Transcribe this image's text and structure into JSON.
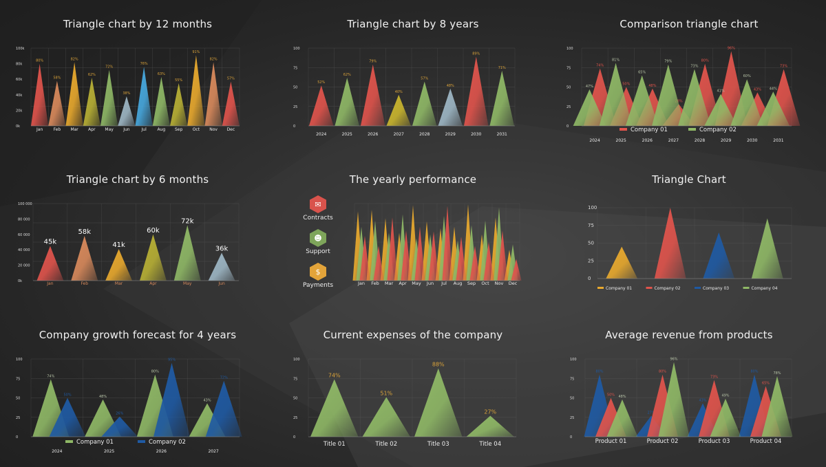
{
  "colors": {
    "red": "#e0544c",
    "orange": "#d98a5c",
    "yellow": "#e8a92e",
    "olive": "#b8b035",
    "green": "#8fb866",
    "grayblue": "#9db6c4",
    "skyblue": "#47a8de",
    "blue": "#1f5aa3",
    "label_orange": "#d9a23a"
  },
  "titles": [
    "Triangle chart by 12 months",
    "Triangle chart by 8 years",
    "Comparison triangle chart",
    "Triangle chart by 6 months",
    "The yearly performance",
    "Triangle Chart",
    "Company growth forecast for 4 years",
    "Current expenses of the company",
    "Average revenue from products"
  ],
  "side_legend": [
    {
      "label": "Contracts",
      "icon": "handshake-icon",
      "color": "#d9534c"
    },
    {
      "label": "Support",
      "icon": "support-agent-icon",
      "color": "#7ea55a"
    },
    {
      "label": "Payments",
      "icon": "money-icon",
      "color": "#e3a43a"
    }
  ],
  "chart_data": [
    {
      "type": "triangle-bar",
      "title": "Triangle chart by 12 months",
      "categories": [
        "Jan",
        "Feb",
        "Mar",
        "Apr",
        "May",
        "Jun",
        "Jul",
        "Aug",
        "Sep",
        "Oct",
        "Nov",
        "Dec"
      ],
      "ylim": [
        0,
        100
      ],
      "yticks": [
        "0k",
        "20k",
        "40k",
        "60k",
        "80k",
        "100k"
      ],
      "grid": true,
      "series": [
        {
          "values": [
            80,
            58,
            82,
            62,
            72,
            38,
            76,
            63,
            55,
            91,
            82,
            57
          ],
          "labels": [
            "80%",
            "58%",
            "82%",
            "62%",
            "72%",
            "38%",
            "76%",
            "63%",
            "55%",
            "91%",
            "82%",
            "57%"
          ],
          "point_colors": [
            "#e0544c",
            "#d98a5c",
            "#e8a92e",
            "#b8b035",
            "#8fb866",
            "#9db6c4",
            "#47a8de",
            "#8fb866",
            "#b8b035",
            "#e8a92e",
            "#d98a5c",
            "#e0544c"
          ],
          "label_color": "#d9a23a"
        }
      ]
    },
    {
      "type": "triangle-bar",
      "title": "Triangle chart by 8 years",
      "categories": [
        "2024",
        "2025",
        "2026",
        "2027",
        "2028",
        "2029",
        "2030",
        "2031"
      ],
      "ylim": [
        0,
        100
      ],
      "yticks": [
        "0",
        "25",
        "50",
        "75",
        "100"
      ],
      "grid": true,
      "series": [
        {
          "values": [
            52,
            62,
            79,
            40,
            57,
            48,
            89,
            71
          ],
          "labels": [
            "52%",
            "62%",
            "79%",
            "40%",
            "57%",
            "48%",
            "89%",
            "71%"
          ],
          "point_colors": [
            "#e0544c",
            "#8fb866",
            "#e0544c",
            "#c9b52e",
            "#8fb866",
            "#9db6c4",
            "#e0544c",
            "#8fb866"
          ],
          "label_color": "#d9a23a"
        }
      ]
    },
    {
      "type": "triangle-bar",
      "title": "Comparison triangle chart",
      "categories": [
        "2024",
        "2025",
        "2026",
        "2027",
        "2028",
        "2029",
        "2030",
        "2031"
      ],
      "ylim": [
        0,
        100
      ],
      "yticks": [
        "0",
        "25",
        "50",
        "75",
        "100"
      ],
      "grid": true,
      "legend": "bottom",
      "series": [
        {
          "name": "Company 01",
          "color": "#e0544c",
          "label_color": "#e0544c",
          "values": [
            74,
            50,
            48,
            28,
            80,
            96,
            43,
            73
          ],
          "labels": [
            "74%",
            "50%",
            "48%",
            "28%",
            "80%",
            "96%",
            "43%",
            "73%"
          ]
        },
        {
          "name": "Company 02",
          "color": "#8fb866",
          "label_color": "#b8c4a8",
          "values": [
            47,
            81,
            65,
            79,
            73,
            41,
            60,
            44
          ],
          "labels": [
            "47%",
            "81%",
            "65%",
            "79%",
            "73%",
            "41%",
            "60%",
            "44%"
          ]
        }
      ]
    },
    {
      "type": "triangle-bar",
      "title": "Triangle chart by 6 months",
      "categories": [
        "Jan",
        "Feb",
        "Mar",
        "Apr",
        "May",
        "Jun"
      ],
      "ylim": [
        0,
        100000
      ],
      "yticks": [
        "0k",
        "20 000",
        "40 000",
        "60 000",
        "80 000",
        "100 000"
      ],
      "grid": true,
      "category_color": "#d98a5c",
      "series": [
        {
          "values": [
            45000,
            58000,
            41000,
            60000,
            72000,
            36000
          ],
          "labels": [
            "45k",
            "58k",
            "41k",
            "60k",
            "72k",
            "36k"
          ],
          "point_colors": [
            "#e0544c",
            "#d98a5c",
            "#e8a92e",
            "#b8b035",
            "#8fb866",
            "#9db6c4"
          ],
          "label_color": "#ffffff"
        }
      ]
    },
    {
      "type": "triangle-bar",
      "title": "The yearly performance",
      "categories": [
        "Jan",
        "Feb",
        "Mar",
        "Apr",
        "May",
        "Jun",
        "Jul",
        "Aug",
        "Sep",
        "Oct",
        "Nov",
        "Dec"
      ],
      "ylim": [
        0,
        100
      ],
      "yticks": [],
      "grid": true,
      "legend": "left",
      "series": [
        {
          "name": "Payments",
          "color": "#e8a92e",
          "values": [
            90,
            92,
            81,
            62,
            98,
            77,
            68,
            70,
            99,
            60,
            82,
            40
          ]
        },
        {
          "name": "Support",
          "color": "#8fb866",
          "values": [
            70,
            78,
            62,
            86,
            55,
            60,
            84,
            52,
            72,
            78,
            95,
            47
          ]
        },
        {
          "name": "Contracts",
          "color": "#e0544c",
          "values": [
            58,
            45,
            82,
            65,
            70,
            64,
            97,
            57,
            45,
            50,
            65,
            28
          ]
        }
      ]
    },
    {
      "type": "triangle-bar",
      "title": "Triangle Chart",
      "categories": [
        "Company 01",
        "Company 02",
        "Company 03",
        "Company 04"
      ],
      "ylim": [
        0,
        100
      ],
      "yticks": [
        "0",
        "25",
        "50",
        "75",
        "100"
      ],
      "grid": true,
      "legend": "bottom",
      "series": [
        {
          "values": [
            45,
            100,
            65,
            85
          ],
          "point_colors": [
            "#e8a92e",
            "#e0544c",
            "#1f5aa3",
            "#8fb866"
          ]
        }
      ]
    },
    {
      "type": "triangle-bar",
      "title": "Company growth forecast for 4 years",
      "categories": [
        "2024",
        "2025",
        "2026",
        "2027"
      ],
      "ylim": [
        0,
        100
      ],
      "yticks": [
        "0",
        "25",
        "50",
        "75",
        "100"
      ],
      "grid": true,
      "legend": "bottom",
      "series": [
        {
          "name": "Company 01",
          "color": "#8fb866",
          "label_color": "#b8c4a8",
          "values": [
            74,
            48,
            80,
            43
          ],
          "labels": [
            "74%",
            "48%",
            "80%",
            "43%"
          ]
        },
        {
          "name": "Company 02",
          "color": "#1f5aa3",
          "label_color": "#1f5aa3",
          "values": [
            50,
            26,
            95,
            72
          ],
          "labels": [
            "50%",
            "26%",
            "95%",
            "72%"
          ]
        }
      ]
    },
    {
      "type": "triangle-bar",
      "title": "Current expenses of the company",
      "categories": [
        "Title 01",
        "Title 02",
        "Title 03",
        "Title 04"
      ],
      "ylim": [
        0,
        100
      ],
      "yticks": [
        "0",
        "25",
        "50",
        "75",
        "100"
      ],
      "grid": true,
      "series": [
        {
          "color": "#8fb866",
          "label_color": "#d9a23a",
          "values": [
            74,
            51,
            88,
            27
          ],
          "labels": [
            "74%",
            "51%",
            "88%",
            "27%"
          ]
        }
      ]
    },
    {
      "type": "triangle-bar",
      "title": "Average revenue from products",
      "categories": [
        "Product 01",
        "Product 02",
        "Product 03",
        "Product 04"
      ],
      "ylim": [
        0,
        100
      ],
      "yticks": [
        "0",
        "25",
        "50",
        "75",
        "100"
      ],
      "grid": true,
      "series": [
        {
          "color": "#1f5aa3",
          "label_color": "#1f5aa3",
          "values": [
            80,
            27,
            43,
            80
          ],
          "labels": [
            "80%",
            "27%",
            "43%",
            "80%"
          ]
        },
        {
          "color": "#e0544c",
          "label_color": "#e0544c",
          "values": [
            50,
            80,
            73,
            65
          ],
          "labels": [
            "50%",
            "80%",
            "73%",
            "65%"
          ]
        },
        {
          "color": "#8fb866",
          "label_color": "#b8c4a8",
          "values": [
            48,
            96,
            49,
            78
          ],
          "labels": [
            "48%",
            "96%",
            "49%",
            "78%"
          ]
        }
      ]
    }
  ]
}
